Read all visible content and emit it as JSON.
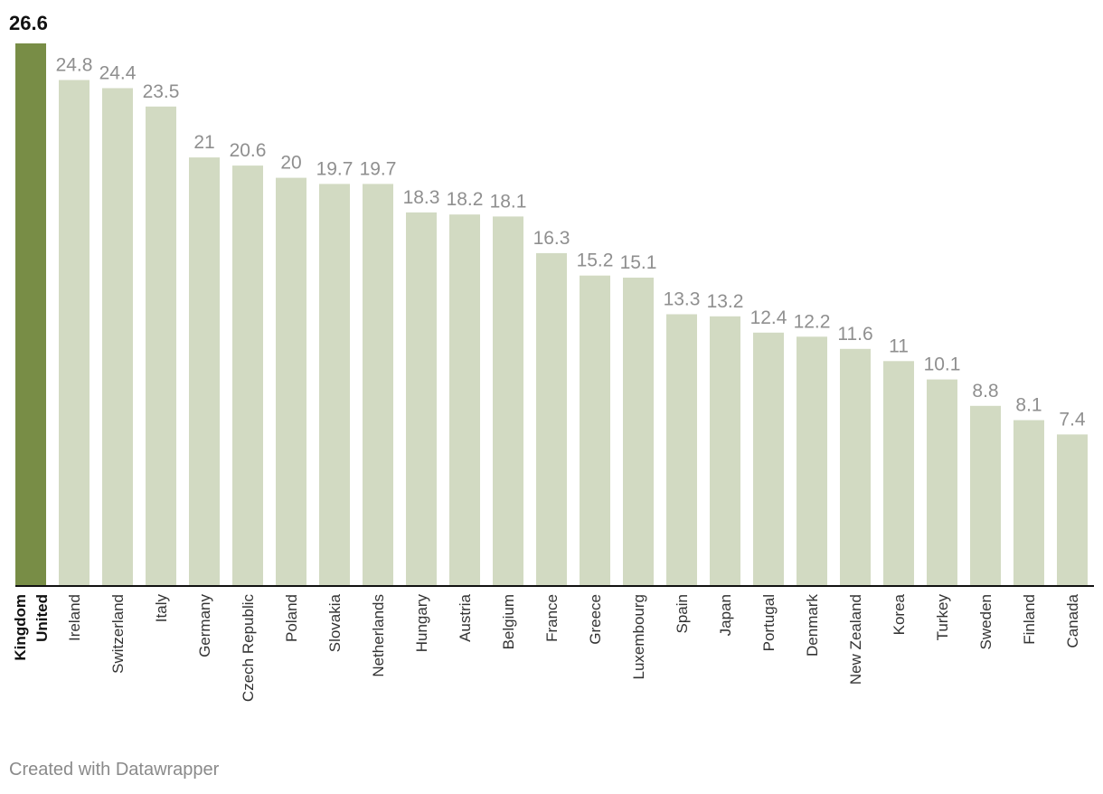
{
  "chart_data": {
    "type": "bar",
    "categories": [
      "United Kingdom",
      "Ireland",
      "Switzerland",
      "Italy",
      "Germany",
      "Czech Republic",
      "Poland",
      "Slovakia",
      "Netherlands",
      "Hungary",
      "Austria",
      "Belgium",
      "France",
      "Greece",
      "Luxembourg",
      "Spain",
      "Japan",
      "Portugal",
      "Denmark",
      "New Zealand",
      "Korea",
      "Turkey",
      "Sweden",
      "Finland",
      "Canada"
    ],
    "values": [
      26.6,
      24.8,
      24.4,
      23.5,
      21,
      20.6,
      20,
      19.7,
      19.7,
      18.3,
      18.2,
      18.1,
      16.3,
      15.2,
      15.1,
      13.3,
      13.2,
      12.4,
      12.2,
      11.6,
      11,
      10.1,
      8.8,
      8.1,
      7.4
    ],
    "highlight": "United Kingdom",
    "highlight_color": "#788d46",
    "bar_color": "#d2dac2",
    "label_color": "#8f8f8f",
    "highlight_label_color": "#111111",
    "ylim": [
      0,
      26.6
    ],
    "grid": false
  },
  "footer": {
    "credit": "Created with Datawrapper"
  }
}
